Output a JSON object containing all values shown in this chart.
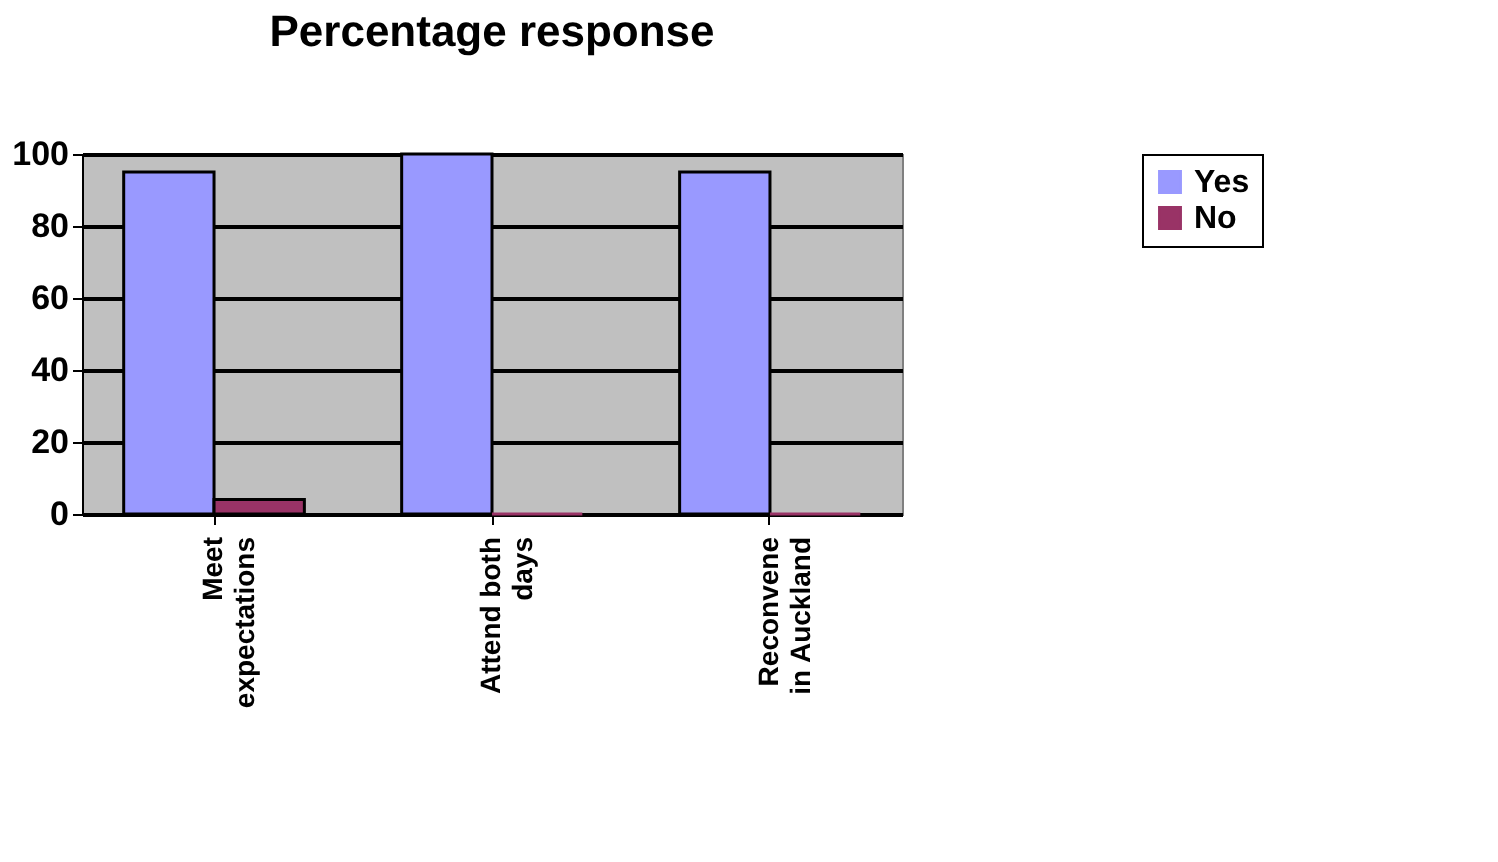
{
  "chart_data": {
    "type": "bar",
    "title": "Percentage response",
    "categories": [
      "Meet\nexpectations",
      "Attend both\ndays",
      "Reconvene\nin Auckland"
    ],
    "series": [
      {
        "name": "Yes",
        "color": "#9999ff",
        "values": [
          95,
          100,
          95
        ]
      },
      {
        "name": "No",
        "color": "#993366",
        "values": [
          4,
          0,
          0
        ]
      }
    ],
    "ylim": [
      0,
      100
    ],
    "yticks": [
      0,
      20,
      40,
      60,
      80,
      100
    ],
    "grid": "y",
    "legend": "right"
  }
}
